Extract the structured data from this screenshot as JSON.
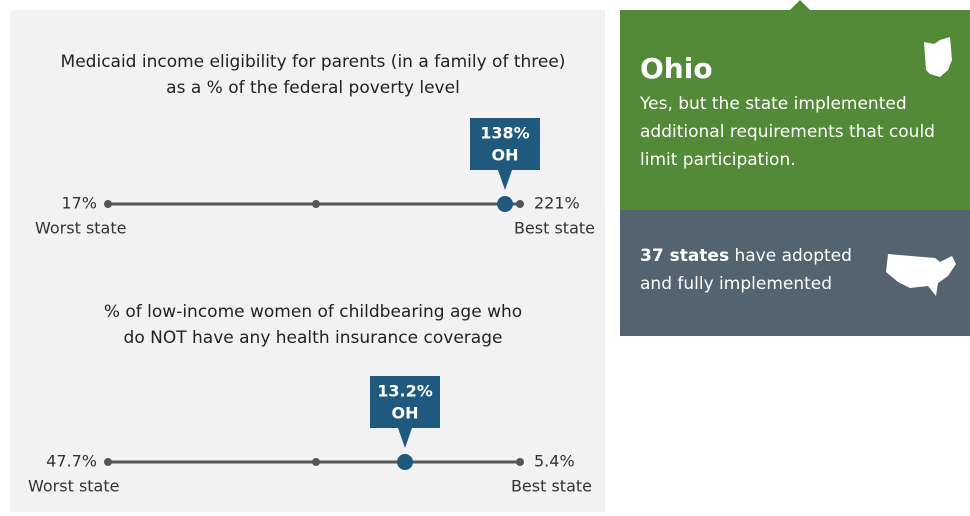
{
  "metrics": [
    {
      "title_lines": [
        "Medicaid income eligibility for parents (in a family of three)",
        "as a % of the federal poverty level"
      ],
      "worst_value": "17%",
      "worst_label": "Worst state",
      "best_value": "221%",
      "best_label": "Best state",
      "state_value": "138%",
      "state_abbr": "OH"
    },
    {
      "title_lines": [
        "% of low-income women of childbearing age who",
        "do NOT have any health insurance coverage"
      ],
      "worst_value": "47.7%",
      "worst_label": "Worst state",
      "best_value": "5.4%",
      "best_label": "Best state",
      "state_value": "13.2%",
      "state_abbr": "OH"
    }
  ],
  "state_panel": {
    "name": "Ohio",
    "text_lines": [
      "Yes, but the state implemented",
      "additional requirements that could",
      "limit participation."
    ]
  },
  "national_panel": {
    "bold": "37 states",
    "rest": " have adopted",
    "line2": "and fully implemented"
  }
}
